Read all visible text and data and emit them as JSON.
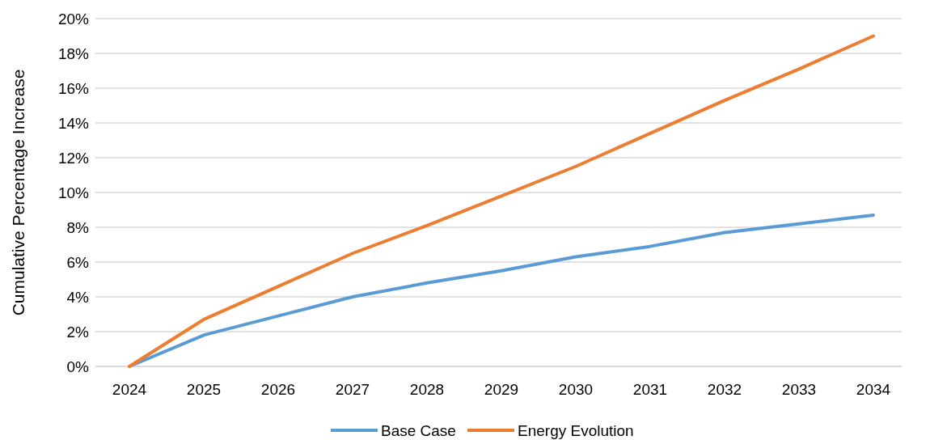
{
  "chart_data": {
    "type": "line",
    "ylabel": "Cumulative Percentage Increase",
    "categories": [
      "2024",
      "2025",
      "2026",
      "2027",
      "2028",
      "2029",
      "2030",
      "2031",
      "2032",
      "2033",
      "2034"
    ],
    "series": [
      {
        "name": "Base Case",
        "color": "#5b9bd5",
        "values": [
          0,
          1.8,
          2.9,
          4.0,
          4.8,
          5.5,
          6.3,
          6.9,
          7.7,
          8.2,
          8.7
        ]
      },
      {
        "name": "Energy Evolution",
        "color": "#ed7d31",
        "values": [
          0,
          2.7,
          4.6,
          6.5,
          8.1,
          9.8,
          11.5,
          13.4,
          15.3,
          17.1,
          19.0
        ]
      }
    ],
    "ylim": [
      0,
      20
    ],
    "yticks": [
      {
        "value": 0,
        "label": "0%"
      },
      {
        "value": 2,
        "label": "2%"
      },
      {
        "value": 4,
        "label": "4%"
      },
      {
        "value": 6,
        "label": "6%"
      },
      {
        "value": 8,
        "label": "8%"
      },
      {
        "value": 10,
        "label": "10%"
      },
      {
        "value": 12,
        "label": "12%"
      },
      {
        "value": 14,
        "label": "14%"
      },
      {
        "value": 16,
        "label": "16%"
      },
      {
        "value": 18,
        "label": "18%"
      },
      {
        "value": 20,
        "label": "20%"
      }
    ],
    "grid": "y",
    "legend": "bottom",
    "line_style": "solid",
    "marker": "none"
  }
}
